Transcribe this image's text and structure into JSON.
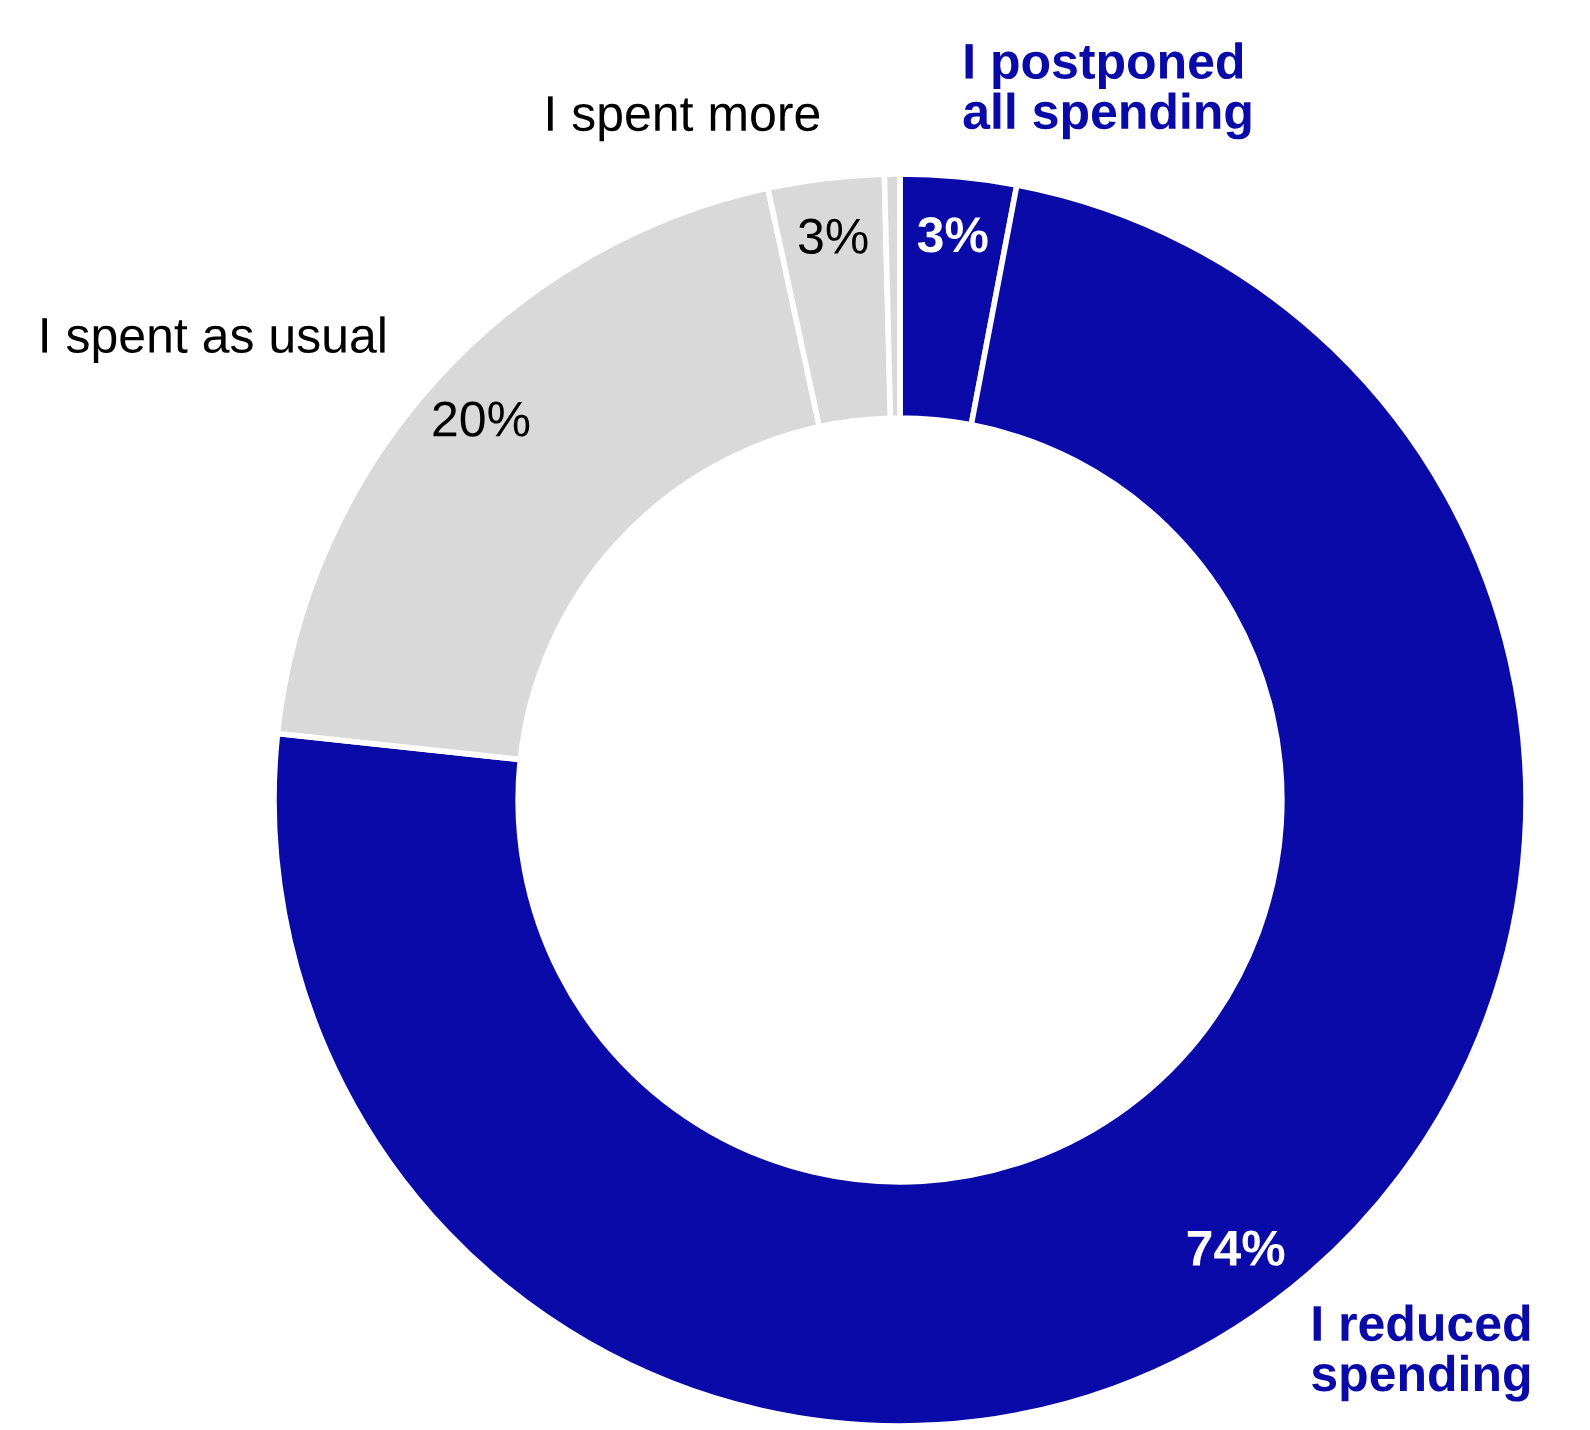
{
  "chart_data": {
    "type": "donut",
    "categories": [
      "I postponed\nall spending",
      "I reduced\nspending",
      "I spent as usual",
      "I spent more",
      null
    ],
    "values": [
      3,
      74,
      20,
      3,
      0.4
    ],
    "colors": [
      "#0a0aa8",
      "#0a0aa8",
      "#d9d9d9",
      "#d9d9d9",
      "#d9d9d9"
    ],
    "value_labels": [
      "3%",
      "74%",
      "20%",
      "3%",
      null
    ]
  }
}
